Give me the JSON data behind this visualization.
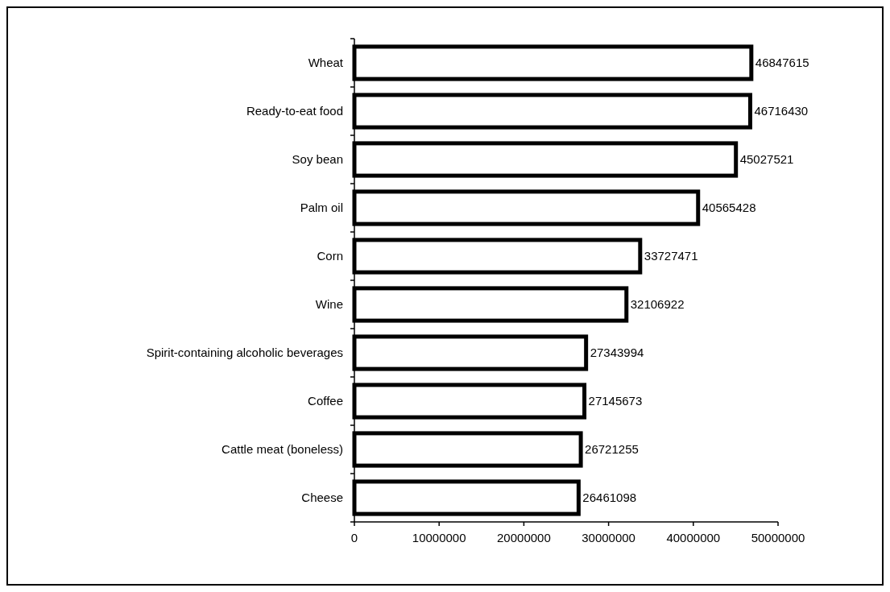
{
  "chart_data": {
    "type": "bar",
    "orientation": "horizontal",
    "categories": [
      "Wheat",
      "Ready-to-eat food",
      "Soy bean",
      "Palm oil",
      "Corn",
      "Wine",
      "Spirit-containing alcoholic beverages",
      "Coffee",
      "Cattle meat (boneless)",
      "Cheese"
    ],
    "values": [
      46847615,
      46716430,
      45027521,
      40565428,
      33727471,
      32106922,
      27343994,
      27145673,
      26721255,
      26461098
    ],
    "color": "#ffffff",
    "xlim": [
      0,
      50000000
    ],
    "xticks": [
      0,
      10000000,
      20000000,
      30000000,
      40000000,
      50000000
    ],
    "data_labels": true,
    "grid": false
  }
}
